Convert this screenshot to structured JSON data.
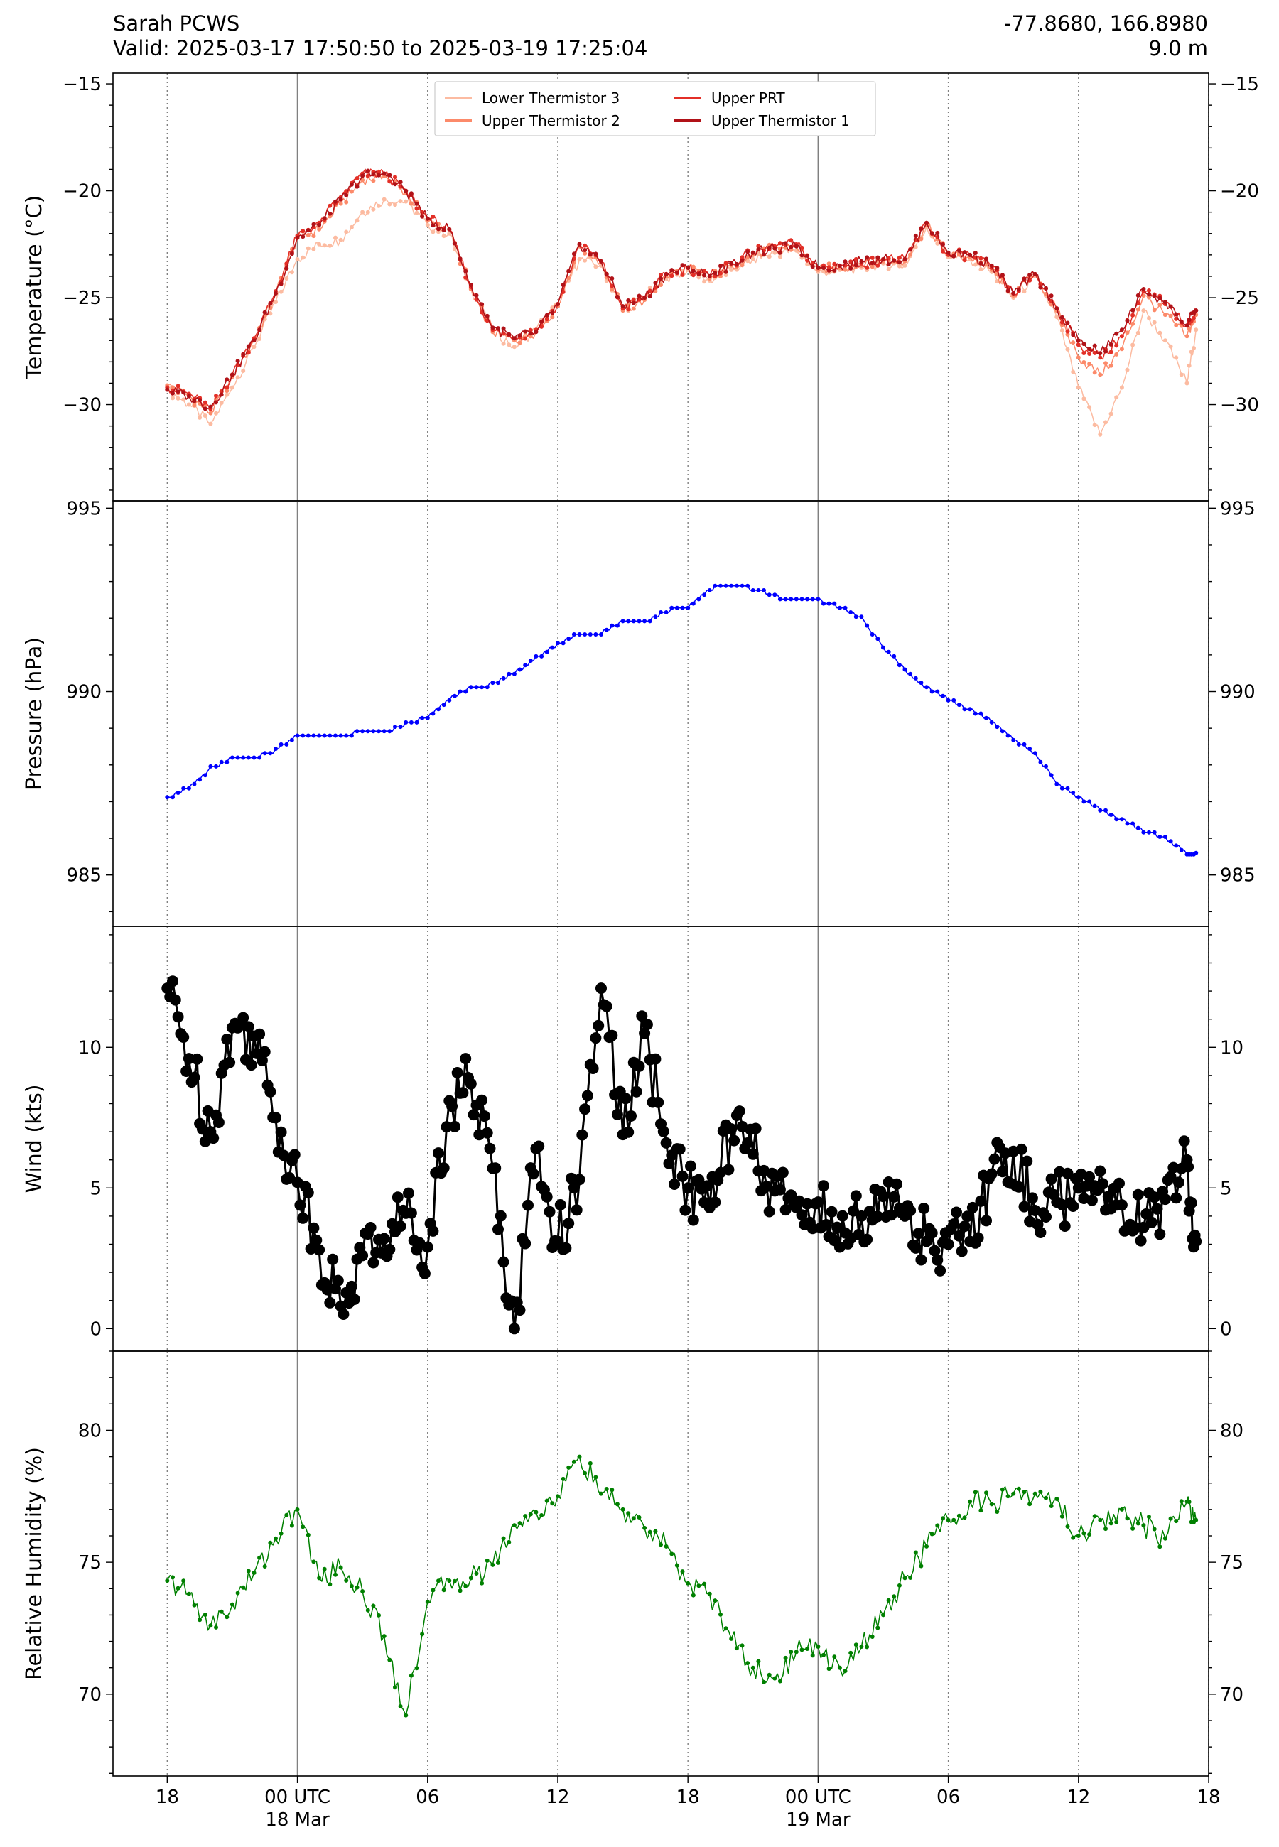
{
  "header": {
    "station": "Sarah PCWS",
    "valid": "Valid: 2025-03-17 17:50:50 to 2025-03-19 17:25:04",
    "coords": "-77.8680, 166.8980",
    "height": "9.0 m"
  },
  "colors": {
    "lower_thermistor_3": "#fcbba1",
    "upper_thermistor_2": "#fc8a6a",
    "upper_prt": "#e32f27",
    "upper_thermistor_1": "#b11218",
    "pressure": "#0000ff",
    "wind": "#000000",
    "humidity": "#008000"
  },
  "chart_data": [
    {
      "type": "line",
      "ylabel": "Temperature ($^\\circ$C)",
      "ylim": [
        -34.5,
        -14.5
      ],
      "yticks": [
        -15,
        -20,
        -25,
        -30
      ],
      "legend_position": "top-center",
      "grid": "vertical dotted lines every 6 h, solid at 00 UTC",
      "x": [
        "2025-03-17 18:00",
        "2025-03-17 19:00",
        "2025-03-17 20:00",
        "2025-03-17 21:00",
        "2025-03-17 22:00",
        "2025-03-17 23:00",
        "2025-03-18 00:00",
        "2025-03-18 01:00",
        "2025-03-18 02:00",
        "2025-03-18 03:00",
        "2025-03-18 04:00",
        "2025-03-18 05:00",
        "2025-03-18 06:00",
        "2025-03-18 07:00",
        "2025-03-18 08:00",
        "2025-03-18 09:00",
        "2025-03-18 10:00",
        "2025-03-18 11:00",
        "2025-03-18 12:00",
        "2025-03-18 13:00",
        "2025-03-18 14:00",
        "2025-03-18 15:00",
        "2025-03-18 16:00",
        "2025-03-18 17:00",
        "2025-03-18 18:00",
        "2025-03-18 19:00",
        "2025-03-18 20:00",
        "2025-03-18 21:00",
        "2025-03-18 22:00",
        "2025-03-18 23:00",
        "2025-03-19 00:00",
        "2025-03-19 01:00",
        "2025-03-19 02:00",
        "2025-03-19 03:00",
        "2025-03-19 04:00",
        "2025-03-19 05:00",
        "2025-03-19 06:00",
        "2025-03-19 07:00",
        "2025-03-19 08:00",
        "2025-03-19 09:00",
        "2025-03-19 10:00",
        "2025-03-19 11:00",
        "2025-03-19 12:00",
        "2025-03-19 13:00",
        "2025-03-19 14:00",
        "2025-03-19 15:00",
        "2025-03-19 16:00",
        "2025-03-19 17:00",
        "2025-03-19 17:25"
      ],
      "series": [
        {
          "name": "Lower Thermistor 3",
          "color_key": "lower_thermistor_3",
          "values": [
            -29.3,
            -30.0,
            -30.9,
            -29.2,
            -27.3,
            -25.2,
            -23.2,
            -22.5,
            -22.3,
            -21.0,
            -20.4,
            -20.5,
            -21.6,
            -22.0,
            -24.6,
            -26.5,
            -27.3,
            -26.5,
            -25.3,
            -23.2,
            -23.5,
            -25.5,
            -25.0,
            -24.1,
            -23.7,
            -24.2,
            -23.7,
            -23.2,
            -22.9,
            -22.8,
            -23.8,
            -23.7,
            -23.6,
            -23.4,
            -23.5,
            -21.7,
            -23.1,
            -23.2,
            -23.8,
            -25.0,
            -24.0,
            -25.9,
            -29.2,
            -31.4,
            -29.2,
            -25.6,
            -27.0,
            -29.0,
            -26.5
          ]
        },
        {
          "name": "Upper Thermistor 2",
          "color_key": "upper_thermistor_2",
          "values": [
            -29.1,
            -29.6,
            -30.4,
            -28.7,
            -27.0,
            -24.8,
            -22.2,
            -21.8,
            -20.6,
            -19.5,
            -19.3,
            -20.1,
            -21.4,
            -21.8,
            -24.6,
            -26.6,
            -27.0,
            -26.6,
            -25.4,
            -22.6,
            -23.3,
            -25.6,
            -25.1,
            -24.0,
            -23.6,
            -24.1,
            -23.5,
            -23.0,
            -22.7,
            -22.6,
            -23.7,
            -23.6,
            -23.5,
            -23.3,
            -23.3,
            -21.6,
            -23.0,
            -23.1,
            -23.7,
            -24.9,
            -23.9,
            -25.6,
            -27.8,
            -28.6,
            -27.4,
            -24.9,
            -25.8,
            -26.8,
            -25.8
          ]
        },
        {
          "name": "Upper PRT",
          "color_key": "upper_prt",
          "values": [
            -29.2,
            -29.5,
            -30.2,
            -28.6,
            -26.9,
            -24.7,
            -22.1,
            -21.5,
            -20.3,
            -19.2,
            -19.2,
            -20.0,
            -21.3,
            -21.8,
            -24.5,
            -26.5,
            -26.9,
            -26.5,
            -25.3,
            -22.5,
            -23.3,
            -25.5,
            -25.0,
            -23.9,
            -23.6,
            -24.0,
            -23.4,
            -22.9,
            -22.6,
            -22.5,
            -23.6,
            -23.5,
            -23.4,
            -23.2,
            -23.2,
            -21.5,
            -23.0,
            -23.0,
            -23.6,
            -24.8,
            -23.9,
            -25.5,
            -27.2,
            -27.8,
            -26.8,
            -24.7,
            -25.3,
            -26.3,
            -25.6
          ]
        },
        {
          "name": "Upper Thermistor 1",
          "color_key": "upper_thermistor_1",
          "values": [
            -29.3,
            -29.6,
            -30.1,
            -28.6,
            -27.0,
            -24.8,
            -22.2,
            -21.6,
            -20.4,
            -19.3,
            -19.2,
            -20.0,
            -21.3,
            -21.8,
            -24.4,
            -26.4,
            -26.9,
            -26.6,
            -25.3,
            -22.5,
            -23.3,
            -25.4,
            -25.0,
            -23.9,
            -23.6,
            -24.0,
            -23.4,
            -22.9,
            -22.7,
            -22.6,
            -23.6,
            -23.5,
            -23.3,
            -23.2,
            -23.2,
            -21.5,
            -22.9,
            -23.0,
            -23.5,
            -24.8,
            -23.9,
            -25.5,
            -27.0,
            -27.6,
            -26.5,
            -24.6,
            -25.2,
            -26.3,
            -25.6
          ]
        }
      ]
    },
    {
      "type": "line",
      "ylabel": "Pressure (hPa)",
      "ylim": [
        983.6,
        995.2
      ],
      "yticks": [
        995,
        990,
        985
      ],
      "x": [
        "2025-03-17 18:00",
        "2025-03-17 19:00",
        "2025-03-17 20:00",
        "2025-03-17 21:00",
        "2025-03-17 22:00",
        "2025-03-17 23:00",
        "2025-03-18 00:00",
        "2025-03-18 01:00",
        "2025-03-18 02:00",
        "2025-03-18 03:00",
        "2025-03-18 04:00",
        "2025-03-18 05:00",
        "2025-03-18 06:00",
        "2025-03-18 07:00",
        "2025-03-18 08:00",
        "2025-03-18 09:00",
        "2025-03-18 10:00",
        "2025-03-18 11:00",
        "2025-03-18 12:00",
        "2025-03-18 13:00",
        "2025-03-18 14:00",
        "2025-03-18 15:00",
        "2025-03-18 16:00",
        "2025-03-18 17:00",
        "2025-03-18 18:00",
        "2025-03-18 19:00",
        "2025-03-18 20:00",
        "2025-03-18 21:00",
        "2025-03-18 22:00",
        "2025-03-18 23:00",
        "2025-03-19 00:00",
        "2025-03-19 01:00",
        "2025-03-19 02:00",
        "2025-03-19 03:00",
        "2025-03-19 04:00",
        "2025-03-19 05:00",
        "2025-03-19 06:00",
        "2025-03-19 07:00",
        "2025-03-19 08:00",
        "2025-03-19 09:00",
        "2025-03-19 10:00",
        "2025-03-19 11:00",
        "2025-03-19 12:00",
        "2025-03-19 13:00",
        "2025-03-19 14:00",
        "2025-03-19 15:00",
        "2025-03-19 16:00",
        "2025-03-19 17:00",
        "2025-03-19 17:25"
      ],
      "series": [
        {
          "name": "",
          "color_key": "pressure",
          "values": [
            987.1,
            987.4,
            987.9,
            988.2,
            988.2,
            988.4,
            988.8,
            988.8,
            988.8,
            988.9,
            988.9,
            989.1,
            989.3,
            989.8,
            990.1,
            990.2,
            990.5,
            990.9,
            991.3,
            991.6,
            991.6,
            991.9,
            991.9,
            992.2,
            992.3,
            992.8,
            992.9,
            992.8,
            992.6,
            992.5,
            992.5,
            992.3,
            992.0,
            991.2,
            990.6,
            990.1,
            989.8,
            989.5,
            989.2,
            988.7,
            988.3,
            987.5,
            987.1,
            986.8,
            986.5,
            986.2,
            986.0,
            985.6,
            985.6
          ]
        }
      ]
    },
    {
      "type": "line",
      "ylabel": "Wind (kts)",
      "ylim": [
        -0.8,
        14.3
      ],
      "yticks": [
        10,
        5,
        0
      ],
      "x": [
        "2025-03-17 18:00",
        "2025-03-17 19:00",
        "2025-03-17 20:00",
        "2025-03-17 21:00",
        "2025-03-17 22:00",
        "2025-03-17 23:00",
        "2025-03-18 00:00",
        "2025-03-18 01:00",
        "2025-03-18 02:00",
        "2025-03-18 03:00",
        "2025-03-18 04:00",
        "2025-03-18 05:00",
        "2025-03-18 06:00",
        "2025-03-18 07:00",
        "2025-03-18 08:00",
        "2025-03-18 09:00",
        "2025-03-18 10:00",
        "2025-03-18 11:00",
        "2025-03-18 12:00",
        "2025-03-18 13:00",
        "2025-03-18 14:00",
        "2025-03-18 15:00",
        "2025-03-18 16:00",
        "2025-03-18 17:00",
        "2025-03-18 18:00",
        "2025-03-18 19:00",
        "2025-03-18 20:00",
        "2025-03-18 21:00",
        "2025-03-18 22:00",
        "2025-03-18 23:00",
        "2025-03-19 00:00",
        "2025-03-19 01:00",
        "2025-03-19 02:00",
        "2025-03-19 03:00",
        "2025-03-19 04:00",
        "2025-03-19 05:00",
        "2025-03-19 06:00",
        "2025-03-19 07:00",
        "2025-03-19 08:00",
        "2025-03-19 09:00",
        "2025-03-19 10:00",
        "2025-03-19 11:00",
        "2025-03-19 12:00",
        "2025-03-19 13:00",
        "2025-03-19 14:00",
        "2025-03-19 15:00",
        "2025-03-19 16:00",
        "2025-03-19 17:00",
        "2025-03-19 17:25"
      ],
      "series": [
        {
          "name": "",
          "color_key": "wind",
          "values": [
            12.1,
            9.6,
            7.0,
            10.7,
            10.4,
            7.5,
            5.2,
            2.8,
            0.8,
            2.6,
            3.2,
            4.1,
            2.9,
            8.1,
            8.7,
            5.7,
            0.0,
            6.4,
            3.1,
            5.3,
            12.1,
            6.9,
            10.5,
            6.6,
            5.0,
            4.3,
            7.1,
            6.2,
            4.9,
            4.3,
            4.5,
            2.9,
            4.0,
            4.7,
            4.0,
            3.1,
            3.0,
            3.1,
            5.5,
            6.3,
            4.2,
            4.5,
            5.0,
            5.6,
            4.4,
            3.6,
            4.6,
            6.0,
            3.1
          ]
        }
      ]
    },
    {
      "type": "line",
      "ylabel": "Relative Humidity (%)",
      "ylim": [
        66.9,
        83.0
      ],
      "yticks": [
        80,
        75,
        70
      ],
      "x": [
        "2025-03-17 18:00",
        "2025-03-17 19:00",
        "2025-03-17 20:00",
        "2025-03-17 21:00",
        "2025-03-17 22:00",
        "2025-03-17 23:00",
        "2025-03-18 00:00",
        "2025-03-18 01:00",
        "2025-03-18 02:00",
        "2025-03-18 03:00",
        "2025-03-18 04:00",
        "2025-03-18 05:00",
        "2025-03-18 06:00",
        "2025-03-18 07:00",
        "2025-03-18 08:00",
        "2025-03-18 09:00",
        "2025-03-18 10:00",
        "2025-03-18 11:00",
        "2025-03-18 12:00",
        "2025-03-18 13:00",
        "2025-03-18 14:00",
        "2025-03-18 15:00",
        "2025-03-18 16:00",
        "2025-03-18 17:00",
        "2025-03-18 18:00",
        "2025-03-18 19:00",
        "2025-03-18 20:00",
        "2025-03-18 21:00",
        "2025-03-18 22:00",
        "2025-03-18 23:00",
        "2025-03-19 00:00",
        "2025-03-19 01:00",
        "2025-03-19 02:00",
        "2025-03-19 03:00",
        "2025-03-19 04:00",
        "2025-03-19 05:00",
        "2025-03-19 06:00",
        "2025-03-19 07:00",
        "2025-03-19 08:00",
        "2025-03-19 09:00",
        "2025-03-19 10:00",
        "2025-03-19 11:00",
        "2025-03-19 12:00",
        "2025-03-19 13:00",
        "2025-03-19 14:00",
        "2025-03-19 15:00",
        "2025-03-19 16:00",
        "2025-03-19 17:00",
        "2025-03-19 17:25"
      ],
      "series": [
        {
          "name": "",
          "color_key": "humidity",
          "values": [
            74.3,
            73.8,
            72.6,
            73.4,
            74.6,
            75.9,
            77.0,
            74.4,
            74.8,
            73.9,
            72.2,
            69.2,
            73.5,
            74.3,
            74.4,
            74.9,
            76.4,
            76.9,
            77.5,
            79.0,
            77.6,
            77.0,
            76.3,
            75.6,
            74.2,
            73.8,
            72.1,
            71.0,
            70.6,
            71.6,
            71.8,
            71.0,
            71.8,
            73.0,
            74.4,
            75.6,
            76.6,
            77.3,
            77.2,
            77.6,
            77.6,
            77.4,
            76.0,
            76.6,
            77.0,
            76.4,
            75.9,
            77.3,
            76.6
          ]
        }
      ]
    }
  ],
  "legend": {
    "entries": [
      "Lower Thermistor 3",
      "Upper Thermistor 2",
      "Upper PRT",
      "Upper Thermistor 1"
    ]
  },
  "x_axis": {
    "ticks": [
      {
        "at": "2025-03-17 18:00",
        "label": "18",
        "sublabel": ""
      },
      {
        "at": "2025-03-18 00:00",
        "label": "00 UTC",
        "sublabel": "18 Mar"
      },
      {
        "at": "2025-03-18 06:00",
        "label": "06",
        "sublabel": ""
      },
      {
        "at": "2025-03-18 12:00",
        "label": "12",
        "sublabel": ""
      },
      {
        "at": "2025-03-18 18:00",
        "label": "18",
        "sublabel": ""
      },
      {
        "at": "2025-03-19 00:00",
        "label": "00 UTC",
        "sublabel": "19 Mar"
      },
      {
        "at": "2025-03-19 06:00",
        "label": "06",
        "sublabel": ""
      },
      {
        "at": "2025-03-19 12:00",
        "label": "12",
        "sublabel": ""
      },
      {
        "at": "2025-03-19 18:00",
        "label": "18",
        "sublabel": ""
      }
    ],
    "xlim": [
      "2025-03-17 15:30",
      "2025-03-19 18:00"
    ]
  }
}
